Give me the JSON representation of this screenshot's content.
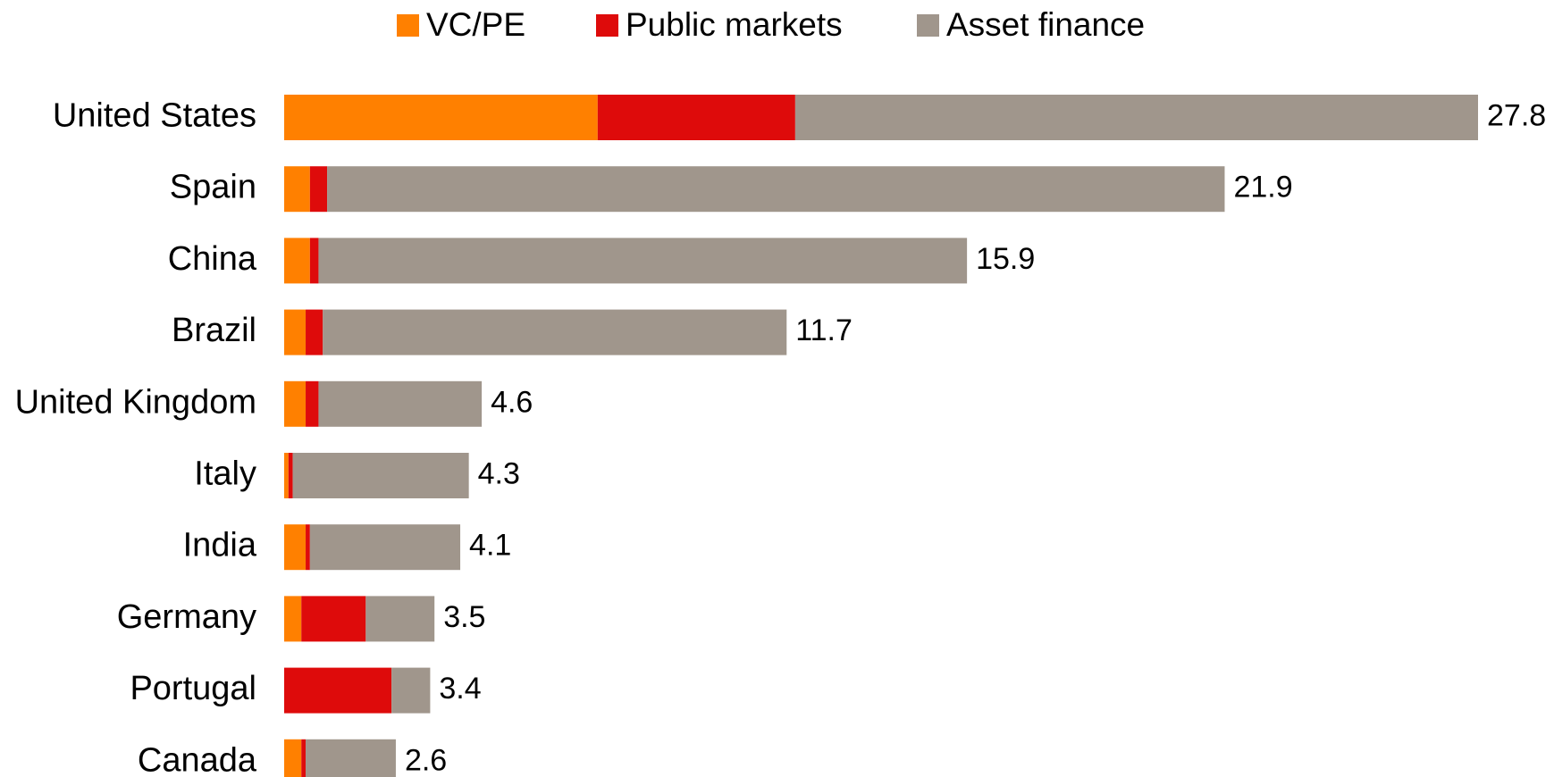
{
  "chart_data": {
    "type": "stacked-bar-horizontal",
    "categories": [
      "United States",
      "Spain",
      "China",
      "Brazil",
      "United Kingdom",
      "Italy",
      "India",
      "Germany",
      "Portugal",
      "Canada"
    ],
    "series": [
      {
        "name": "VC/PE",
        "color": "#ff8000",
        "values": [
          7.3,
          0.6,
          0.6,
          0.5,
          0.5,
          0.1,
          0.5,
          0.4,
          0,
          0.4
        ]
      },
      {
        "name": "Public markets",
        "color": "#de0b0b",
        "values": [
          4.6,
          0.4,
          0.2,
          0.4,
          0.3,
          0.1,
          0.1,
          1.5,
          2.5,
          0.1
        ]
      },
      {
        "name": "Asset finance",
        "color": "#a0968c",
        "values": [
          15.9,
          20.9,
          15.1,
          10.8,
          3.8,
          4.1,
          3.5,
          1.6,
          0.9,
          2.1
        ]
      }
    ],
    "totals": [
      27.8,
      21.9,
      15.9,
      11.7,
      4.6,
      4.3,
      4.1,
      3.5,
      3.4,
      2.6
    ]
  }
}
